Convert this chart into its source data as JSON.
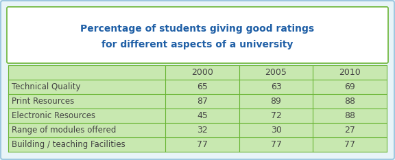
{
  "title_line1": "Percentage of students giving good ratings",
  "title_line2": "for different aspects of a university",
  "title_color": "#1f5fa6",
  "columns": [
    "",
    "2000",
    "2005",
    "2010"
  ],
  "rows": [
    [
      "Technical Quality",
      "65",
      "63",
      "69"
    ],
    [
      "Print Resources",
      "87",
      "89",
      "88"
    ],
    [
      "Electronic Resources",
      "45",
      "72",
      "88"
    ],
    [
      "Range of modules offered",
      "32",
      "30",
      "27"
    ],
    [
      "Building / teaching Facilities",
      "77",
      "77",
      "77"
    ]
  ],
  "header_bg": "#b8d9a0",
  "row_bg": "#c8e8b0",
  "border_color": "#6ab535",
  "title_box_bg": "#ffffff",
  "title_box_border": "#6ab535",
  "outer_border_color": "#a0c8e0",
  "cell_text_color": "#444444",
  "figure_bg": "#e8f4f8",
  "table_border_color": "#6ab535"
}
